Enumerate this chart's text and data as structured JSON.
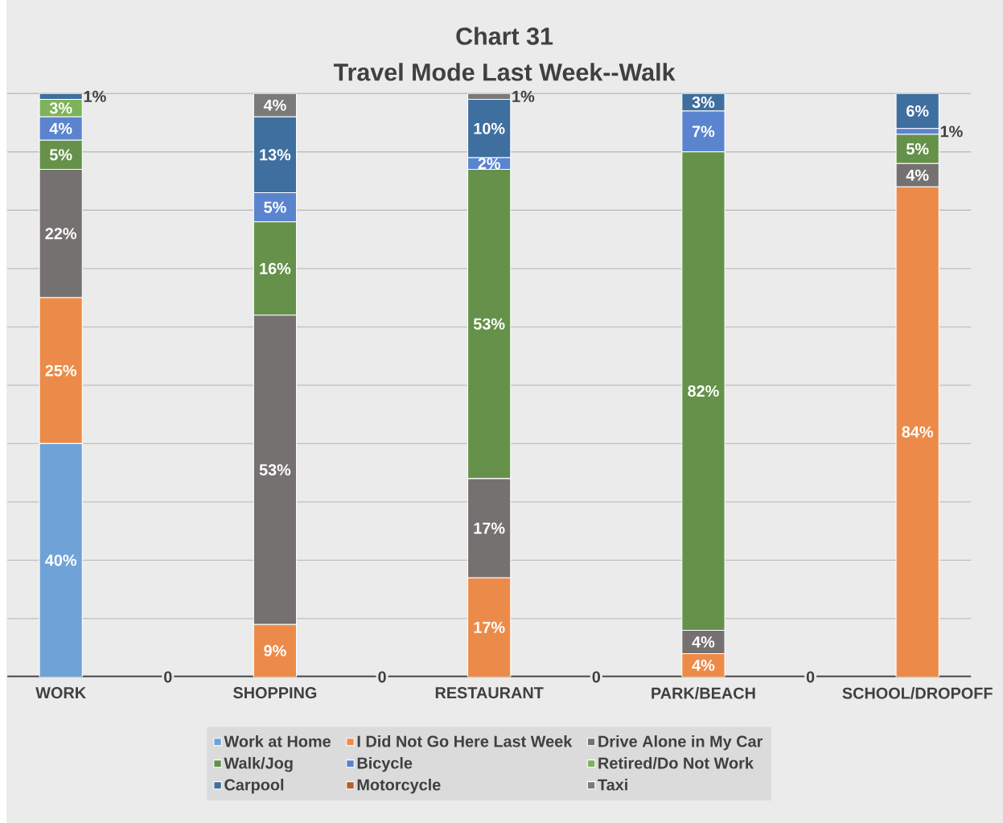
{
  "chart_data": {
    "type": "bar",
    "stacked": true,
    "title": "Chart 31",
    "subtitle": "Travel Mode Last Week--Walk",
    "categories": [
      "WORK",
      null,
      "SHOPPING",
      null,
      "RESTAURANT",
      null,
      "PARK/BEACH",
      null,
      "SCHOOL/DROPOFF"
    ],
    "ylim": [
      0,
      100
    ],
    "yticks": [
      {
        "value": 0,
        "label": null
      },
      {
        "value": 10,
        "label": null
      },
      {
        "value": 20,
        "label": null
      },
      {
        "value": 30,
        "label": null
      },
      {
        "value": 40,
        "label": null
      },
      {
        "value": 50,
        "label": null
      },
      {
        "value": 60,
        "label": null
      },
      {
        "value": 70,
        "label": null
      },
      {
        "value": 80,
        "label": null
      },
      {
        "value": 90,
        "label": null
      },
      {
        "value": 100,
        "label": null
      }
    ],
    "grid": "y",
    "tick_labels": "x",
    "legend": "bottom",
    "series": [
      {
        "name": "Work at Home",
        "color": "#6fa3d8",
        "values": [
          40,
          0,
          null,
          0,
          null,
          0,
          null,
          0,
          null
        ],
        "value_labels": [
          "40%",
          "0",
          null,
          "0",
          null,
          "0",
          null,
          "0",
          null
        ]
      },
      {
        "name": "I Did Not Go Here Last Week",
        "color": "#ec8b49",
        "values": [
          25,
          null,
          9,
          null,
          17,
          null,
          4,
          null,
          84
        ],
        "value_labels": [
          "25%",
          null,
          "9%",
          null,
          "17%",
          null,
          "4%",
          null,
          "84%"
        ]
      },
      {
        "name": "Drive Alone in My Car",
        "color": "#767171",
        "values": [
          22,
          null,
          53,
          null,
          17,
          null,
          4,
          null,
          4
        ],
        "value_labels": [
          "22%",
          null,
          "53%",
          null,
          "17%",
          null,
          "4%",
          null,
          "4%"
        ]
      },
      {
        "name": "Walk/Jog",
        "color": "#65914a",
        "values": [
          5,
          null,
          16,
          null,
          53,
          null,
          82,
          null,
          5
        ],
        "value_labels": [
          "5%",
          null,
          "16%",
          null,
          "53%",
          null,
          "82%",
          null,
          "5%"
        ]
      },
      {
        "name": "Bicycle",
        "color": "#5b84cf",
        "values": [
          4,
          null,
          5,
          null,
          2,
          null,
          7,
          null,
          1
        ],
        "value_labels": [
          "4%",
          null,
          "5%",
          null,
          "2%",
          null,
          "7%",
          null,
          "1%"
        ]
      },
      {
        "name": "Retired/Do Not Work",
        "color": "#7eb35a",
        "values": [
          3,
          null,
          null,
          null,
          null,
          null,
          null,
          null,
          null
        ],
        "value_labels": [
          "3%",
          null,
          null,
          null,
          null,
          null,
          null,
          null,
          null
        ]
      },
      {
        "name": "Carpool",
        "color": "#3f6f9f",
        "values": [
          1,
          null,
          13,
          null,
          10,
          null,
          3,
          null,
          6
        ],
        "value_labels": [
          "1%",
          null,
          "13%",
          null,
          "10%",
          null,
          "3%",
          null,
          "6%"
        ]
      },
      {
        "name": "Motorcycle",
        "color": "#b5602a",
        "values": [
          null,
          null,
          null,
          null,
          null,
          null,
          null,
          null,
          null
        ]
      },
      {
        "name": "Taxi",
        "color": "#7a7a7a",
        "values": [
          null,
          null,
          4,
          null,
          1,
          null,
          null,
          null,
          null
        ],
        "value_labels": [
          null,
          null,
          "4%",
          null,
          "1%",
          null,
          null,
          null,
          null
        ]
      }
    ]
  }
}
